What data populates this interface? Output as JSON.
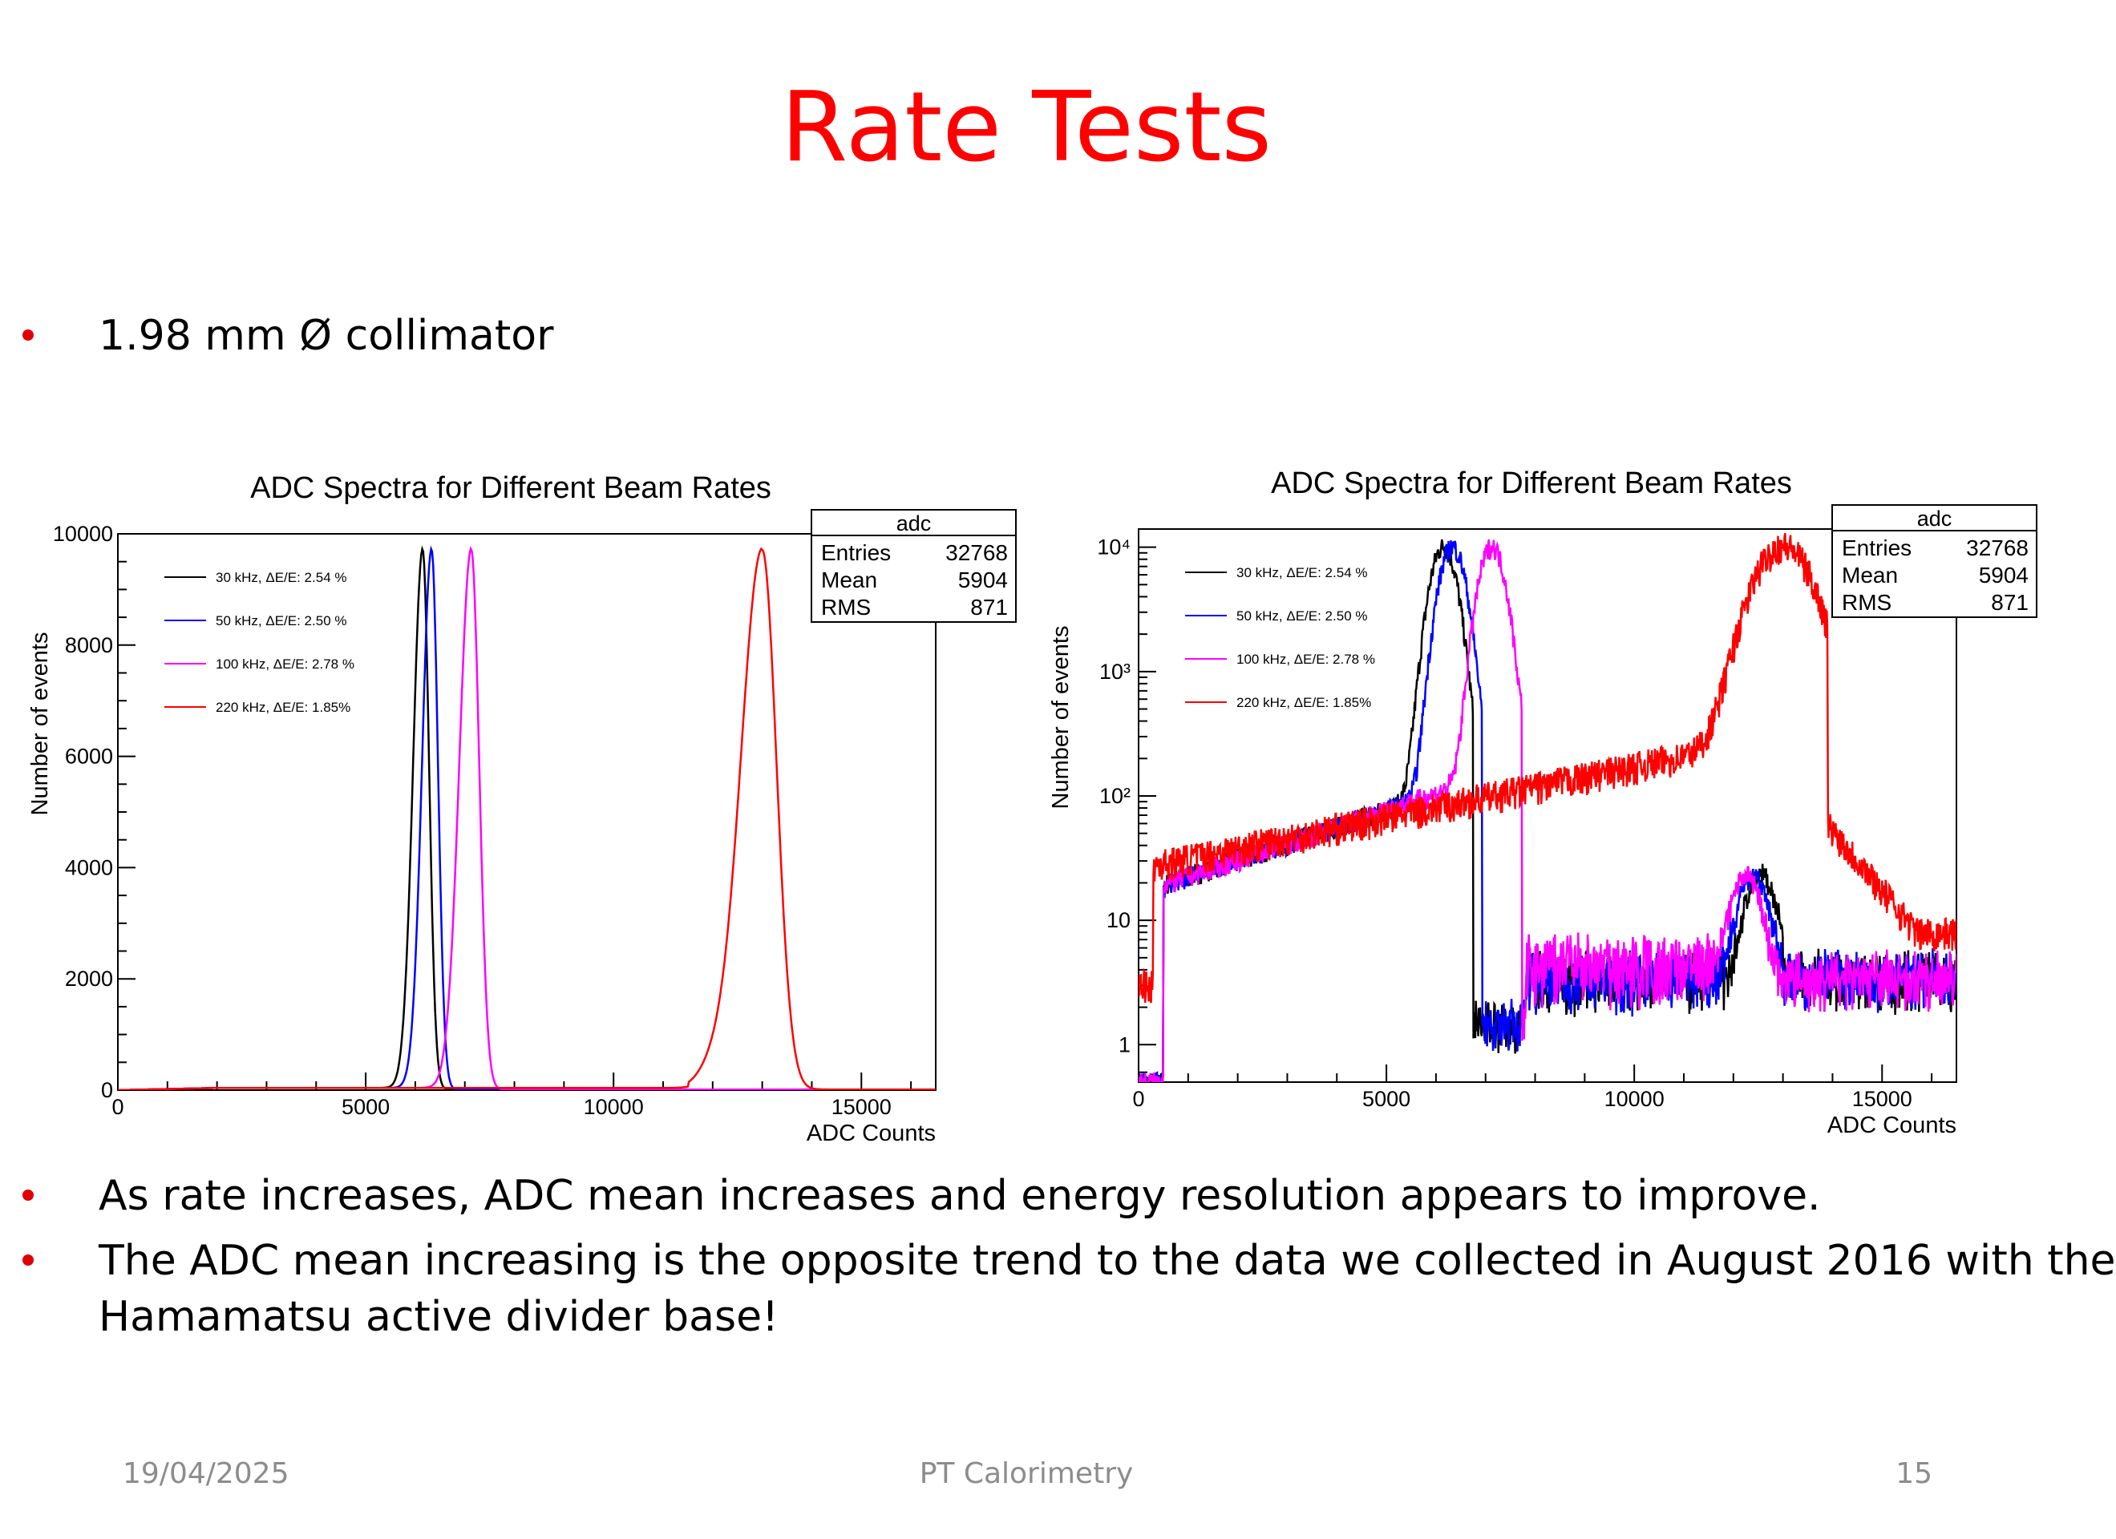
{
  "slide": {
    "title": "Rate Tests",
    "bullet1": "1.98 mm Ø collimator",
    "bullet2": "As rate increases, ADC mean increases and energy resolution appears to improve.",
    "bullet3_line1": "The ADC mean increasing is the opposite trend to the data we collected in August 2016 with the",
    "bullet3_line2": "Hamamatsu active divider base!",
    "footer_date": "19/04/2025",
    "footer_center": "PT Calorimetry",
    "footer_page": "15",
    "bullet_color": "#e00000",
    "title_color": "#ff0000"
  },
  "chart_data": [
    {
      "type": "line",
      "title": "ADC Spectra for Different Beam Rates",
      "xlabel": "ADC Counts",
      "ylabel": "Number of events",
      "xlim": [
        0,
        16500
      ],
      "ylim": [
        0,
        10000
      ],
      "yscale": "linear",
      "xticks": [
        "0",
        "5000",
        "10000",
        "15000"
      ],
      "yticks": [
        "0",
        "2000",
        "4000",
        "6000",
        "8000",
        "10000"
      ],
      "legend_position": "top-left",
      "stats_box": {
        "title": "adc",
        "rows": [
          [
            "Entries",
            "32768"
          ],
          [
            "Mean",
            "5904"
          ],
          [
            "RMS",
            "871"
          ]
        ]
      },
      "series": [
        {
          "name": "30 kHz, ΔE/E: 2.54 %",
          "color": "#000000",
          "peak_x": 6150,
          "peak_y": 9700,
          "sigma": 160,
          "baseline": 40
        },
        {
          "name": "50 kHz, ΔE/E: 2.50 %",
          "color": "#0000ff",
          "peak_x": 6330,
          "peak_y": 9700,
          "sigma": 160,
          "baseline": 40
        },
        {
          "name": "100 kHz, ΔE/E: 2.78 %",
          "color": "#ff00ff",
          "peak_x": 7130,
          "peak_y": 9700,
          "sigma": 200,
          "baseline": 40
        },
        {
          "name": "220 kHz, ΔE/E: 1.85%",
          "color": "#ff0000",
          "peak_x": 13000,
          "peak_y": 9700,
          "sigma": 360,
          "baseline": 40
        }
      ]
    },
    {
      "type": "line",
      "title": "ADC Spectra for Different Beam Rates",
      "xlabel": "ADC Counts",
      "ylabel": "Number of events",
      "xlim": [
        0,
        16500
      ],
      "ylim": [
        0.5,
        14000
      ],
      "yscale": "log",
      "xticks": [
        "0",
        "5000",
        "10000",
        "15000"
      ],
      "yticks": [
        "1",
        "10",
        "10²",
        "10³",
        "10⁴"
      ],
      "legend_position": "top-left",
      "stats_box": {
        "title": "adc",
        "rows": [
          [
            "Entries",
            "32768"
          ],
          [
            "Mean",
            "5904"
          ],
          [
            "RMS",
            "871"
          ]
        ]
      },
      "series": [
        {
          "name": "30 kHz, ΔE/E: 2.54 %",
          "color": "#000000",
          "peak_x": 6150,
          "peak_y": 10000
        },
        {
          "name": "50 kHz, ΔE/E: 2.50 %",
          "color": "#0000ff",
          "peak_x": 6330,
          "peak_y": 10000
        },
        {
          "name": "100 kHz, ΔE/E: 2.78 %",
          "color": "#ff00ff",
          "peak_x": 7130,
          "peak_y": 10000
        },
        {
          "name": "220 kHz, ΔE/E: 1.85%",
          "color": "#ff0000",
          "peak_x": 13000,
          "peak_y": 10000
        }
      ]
    }
  ]
}
